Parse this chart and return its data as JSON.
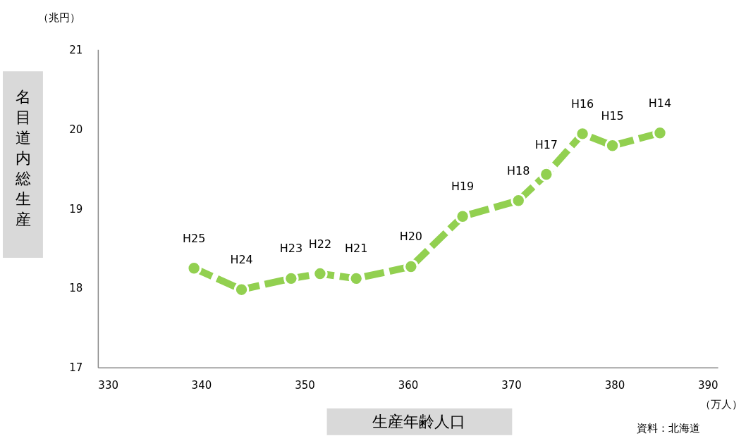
{
  "chart_data": {
    "type": "line",
    "xlabel": "生産年齢人口",
    "ylabel": "名目道内総生産",
    "x": [
      339.3,
      343.9,
      348.7,
      351.5,
      355.0,
      360.3,
      365.3,
      370.7,
      373.4,
      376.9,
      379.8,
      384.4
    ],
    "series": [
      {
        "color": "#92d050",
        "values": [
          18.25,
          17.98,
          18.12,
          18.18,
          18.12,
          18.27,
          18.9,
          19.1,
          19.43,
          19.94,
          19.79,
          19.95
        ]
      }
    ],
    "xlim": [
      330,
      390
    ],
    "xticks": [
      330,
      340,
      350,
      360,
      370,
      380,
      390
    ],
    "ylim": [
      17,
      21
    ],
    "yticks": [
      17,
      18,
      19,
      20,
      21
    ],
    "grid": false,
    "marker": "circle",
    "line_style": "dashed",
    "annotations": [
      {
        "text": "H25",
        "x": 339.3,
        "y": 18.25
      },
      {
        "text": "H24",
        "x": 343.9,
        "y": 17.98
      },
      {
        "text": "H23",
        "x": 348.7,
        "y": 18.12
      },
      {
        "text": "H22",
        "x": 351.5,
        "y": 18.18
      },
      {
        "text": "H21",
        "x": 355.0,
        "y": 18.12
      },
      {
        "text": "H20",
        "x": 360.3,
        "y": 18.27
      },
      {
        "text": "H19",
        "x": 365.3,
        "y": 18.9
      },
      {
        "text": "H18",
        "x": 370.7,
        "y": 19.1
      },
      {
        "text": "H17",
        "x": 373.4,
        "y": 19.43
      },
      {
        "text": "H16",
        "x": 376.9,
        "y": 19.94
      },
      {
        "text": "H15",
        "x": 379.8,
        "y": 19.79
      },
      {
        "text": "H14",
        "x": 384.4,
        "y": 19.95
      },
      "（兆円）",
      "（万人）",
      "資料：北海道"
    ]
  }
}
